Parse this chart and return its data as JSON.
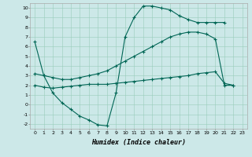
{
  "xlabel": "Humidex (Indice chaleur)",
  "bg_color": "#cce8e8",
  "grid_color": "#99ccbb",
  "line_color": "#006655",
  "xlim": [
    -0.5,
    23.5
  ],
  "ylim": [
    -2.5,
    10.5
  ],
  "line1_x": [
    0,
    1,
    2,
    3,
    4,
    5,
    6,
    7,
    8,
    9,
    10,
    11,
    12,
    13,
    14,
    15,
    16,
    17,
    18,
    19,
    20,
    21
  ],
  "line1_y": [
    6.5,
    3.0,
    1.2,
    0.2,
    -0.5,
    -1.2,
    -1.6,
    -2.1,
    -2.2,
    1.2,
    7.0,
    9.0,
    10.2,
    10.2,
    10.0,
    9.8,
    9.2,
    8.8,
    8.5,
    8.5,
    8.5,
    8.5
  ],
  "line2_x": [
    0,
    1,
    2,
    3,
    4,
    5,
    6,
    7,
    8,
    9,
    10,
    11,
    12,
    13,
    14,
    15,
    16,
    17,
    18,
    19,
    20,
    21,
    22
  ],
  "line2_y": [
    3.2,
    3.0,
    2.8,
    2.6,
    2.6,
    2.8,
    3.0,
    3.2,
    3.5,
    4.0,
    4.5,
    5.0,
    5.5,
    6.0,
    6.5,
    7.0,
    7.3,
    7.5,
    7.5,
    7.3,
    6.8,
    2.0,
    2.0
  ],
  "line3_x": [
    0,
    1,
    2,
    3,
    4,
    5,
    6,
    7,
    8,
    9,
    10,
    11,
    12,
    13,
    14,
    15,
    16,
    17,
    18,
    19,
    20,
    21,
    22
  ],
  "line3_y": [
    2.0,
    1.8,
    1.7,
    1.8,
    1.9,
    2.0,
    2.1,
    2.1,
    2.1,
    2.2,
    2.3,
    2.4,
    2.5,
    2.6,
    2.7,
    2.8,
    2.9,
    3.0,
    3.2,
    3.3,
    3.4,
    2.2,
    2.0
  ]
}
